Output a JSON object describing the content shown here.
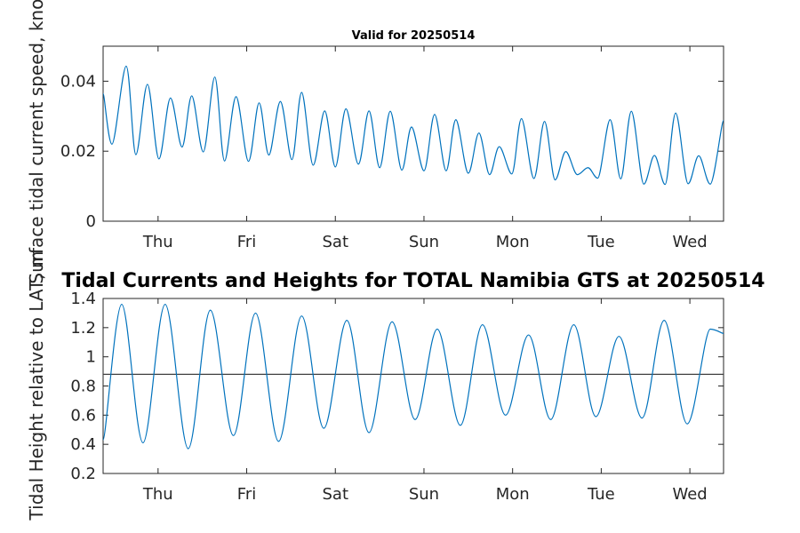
{
  "colors": {
    "series": "#0072BD",
    "reference": "#404040",
    "axis": "#262626"
  },
  "chart_data": [
    {
      "type": "line",
      "title": "Valid for 20250514",
      "ylabel": "Surface tidal current speed, knots",
      "xlabel": "",
      "ylim": [
        0,
        0.05
      ],
      "yticks": [
        "0",
        "0.02",
        "0.04"
      ],
      "ytick_values": [
        0,
        0.02,
        0.04
      ],
      "xlim_days": [
        0,
        7
      ],
      "xticks": [
        "Thu",
        "Fri",
        "Sat",
        "Sun",
        "Mon",
        "Tue",
        "Wed"
      ],
      "xtick_values": [
        0.62,
        1.62,
        2.62,
        3.62,
        4.62,
        5.62,
        6.62
      ],
      "grid": false,
      "series": [
        {
          "x": [
            0.0,
            0.1,
            0.26,
            0.37,
            0.5,
            0.63,
            0.76,
            0.89,
            1.0,
            1.13,
            1.26,
            1.37,
            1.5,
            1.64,
            1.76,
            1.87,
            2.0,
            2.13,
            2.24,
            2.37,
            2.5,
            2.62,
            2.74,
            2.88,
            3.0,
            3.12,
            3.24,
            3.37,
            3.48,
            3.62,
            3.74,
            3.87,
            3.98,
            4.12,
            4.24,
            4.36,
            4.47,
            4.61,
            4.72,
            4.86,
            4.98,
            5.1,
            5.22,
            5.35,
            5.47,
            5.58,
            5.72,
            5.84,
            5.96,
            6.1,
            6.22,
            6.34,
            6.46,
            6.6,
            6.72,
            6.85,
            7.0
          ],
          "y": [
            0.0365,
            0.022,
            0.0443,
            0.019,
            0.0391,
            0.0178,
            0.0352,
            0.0212,
            0.0358,
            0.0198,
            0.0412,
            0.0172,
            0.0356,
            0.0171,
            0.0338,
            0.0189,
            0.0342,
            0.0176,
            0.0368,
            0.016,
            0.0315,
            0.0155,
            0.0321,
            0.0163,
            0.0315,
            0.0153,
            0.0314,
            0.0146,
            0.0269,
            0.0144,
            0.0305,
            0.0144,
            0.029,
            0.0137,
            0.0252,
            0.0133,
            0.0213,
            0.0135,
            0.0293,
            0.0122,
            0.0285,
            0.0118,
            0.0199,
            0.0133,
            0.0153,
            0.0123,
            0.029,
            0.0121,
            0.0314,
            0.0106,
            0.0188,
            0.0105,
            0.0309,
            0.0107,
            0.0187,
            0.0106,
            0.0288
          ]
        }
      ]
    },
    {
      "type": "line",
      "title": "Tidal Currents and Heights for TOTAL Namibia GTS at 20250514",
      "ylabel": "Tidal Height relative to LAT, m",
      "xlabel": "",
      "ylim": [
        0.2,
        1.4
      ],
      "yticks": [
        "0.2",
        "0.4",
        "0.6",
        "0.8",
        "1",
        "1.2",
        "1.4"
      ],
      "ytick_values": [
        0.2,
        0.4,
        0.6,
        0.8,
        1.0,
        1.2,
        1.4
      ],
      "xlim_days": [
        0,
        7
      ],
      "xticks": [
        "Thu",
        "Fri",
        "Sat",
        "Sun",
        "Mon",
        "Tue",
        "Wed"
      ],
      "xtick_values": [
        0.62,
        1.62,
        2.62,
        3.62,
        4.62,
        5.62,
        6.62
      ],
      "grid": false,
      "reference_line": 0.88,
      "series": [
        {
          "x": [
            0.0,
            0.21,
            0.45,
            0.7,
            0.96,
            1.21,
            1.47,
            1.72,
            1.98,
            2.24,
            2.49,
            2.75,
            3.0,
            3.26,
            3.52,
            3.77,
            4.03,
            4.28,
            4.54,
            4.8,
            5.05,
            5.31,
            5.56,
            5.82,
            6.08,
            6.33,
            6.59,
            6.85,
            7.0
          ],
          "y": [
            0.43,
            1.36,
            0.41,
            1.36,
            0.37,
            1.32,
            0.46,
            1.3,
            0.42,
            1.28,
            0.51,
            1.25,
            0.48,
            1.24,
            0.57,
            1.19,
            0.53,
            1.22,
            0.6,
            1.15,
            0.57,
            1.22,
            0.59,
            1.14,
            0.58,
            1.25,
            0.54,
            1.19,
            1.16
          ]
        }
      ]
    }
  ]
}
